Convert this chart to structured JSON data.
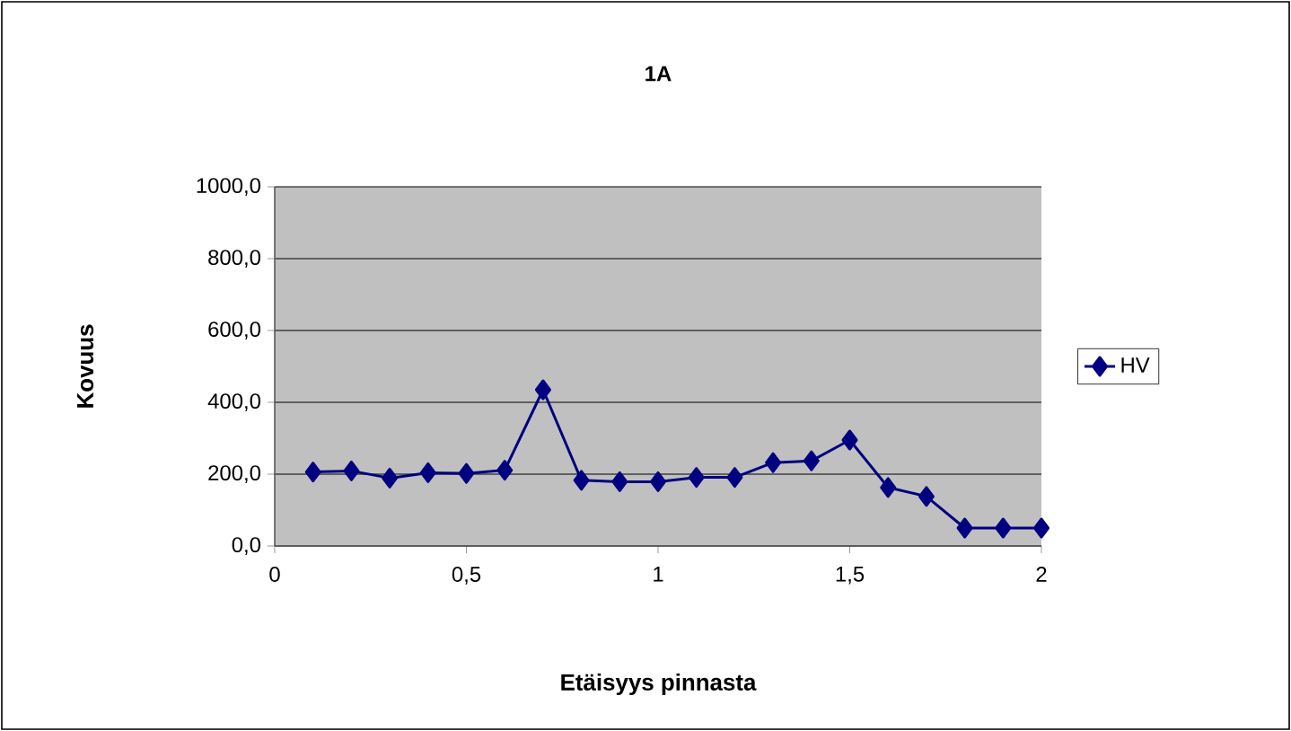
{
  "chart_data": {
    "type": "line",
    "title": "1A",
    "xlabel": "Etäisyys pinnasta",
    "ylabel": "Kovuus",
    "x": [
      0.1,
      0.2,
      0.3,
      0.4,
      0.5,
      0.6,
      0.7,
      0.8,
      0.9,
      1.0,
      1.1,
      1.2,
      1.3,
      1.4,
      1.5,
      1.6,
      1.7,
      1.8,
      1.9,
      2.0
    ],
    "series": [
      {
        "name": "HV",
        "color": "#000080",
        "values": [
          206,
          209,
          189,
          204,
          202,
          211,
          435,
          183,
          179,
          179,
          191,
          191,
          232,
          237,
          295,
          163,
          138,
          50,
          50,
          50
        ]
      }
    ],
    "xlim": [
      0,
      2
    ],
    "ylim": [
      0,
      1000
    ],
    "xticks": [
      0,
      {
        "value": 0.5,
        "label": "0,5"
      },
      1,
      {
        "value": 1.5,
        "label": "1,5"
      },
      2
    ],
    "yticks": [
      {
        "value": 0,
        "label": "0,0"
      },
      {
        "value": 200,
        "label": "200,0"
      },
      {
        "value": 400,
        "label": "400,0"
      },
      {
        "value": 600,
        "label": "600,0"
      },
      {
        "value": 800,
        "label": "800,0"
      },
      {
        "value": 1000,
        "label": "1000,0"
      }
    ],
    "grid": "y",
    "legend": "right",
    "marker": "diamond",
    "line_style": "solid"
  }
}
